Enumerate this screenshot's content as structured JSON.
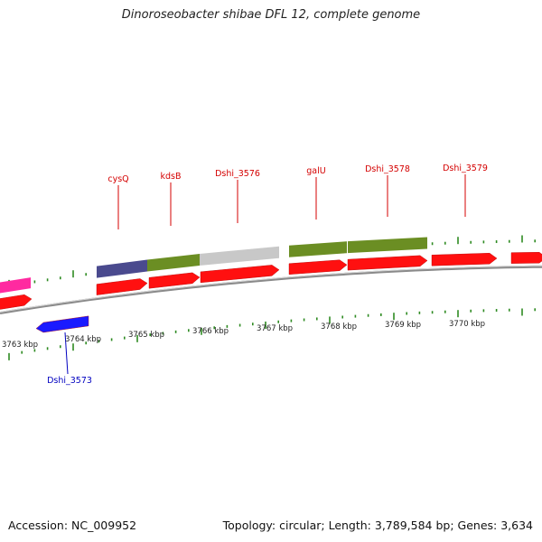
{
  "title": "Dinoroseobacter shibae DFL 12, complete genome",
  "footer": {
    "accession": "Accession: NC_009952",
    "summary": "Topology: circular; Length: 3,789,584 bp; Genes: 3,634"
  },
  "colors": {
    "forward_gene": "#ff1010",
    "reverse_gene": "#1a1aff",
    "rna_gene": "#ff2aa0",
    "backbone": "#8a8a8a",
    "tick": "#2e8b22",
    "label_forward": "#d40000",
    "label_reverse": "#0000c0",
    "cog_purple": "#4a4a8e",
    "cog_green": "#6b8e23",
    "cog_grey": "#c8c8c8"
  },
  "axis": {
    "unit": "kbp",
    "tick_labels": [
      "3763 kbp",
      "3764 kbp",
      "3765 kbp",
      "3766 kbp",
      "3767 kbp",
      "3768 kbp",
      "3769 kbp",
      "3770 kbp"
    ]
  },
  "gene_labels": {
    "forward": [
      "cysQ",
      "kdsB",
      "Dshi_3576",
      "galU",
      "Dshi_3578",
      "Dshi_3579"
    ],
    "reverse": [
      "Dshi_3573"
    ]
  }
}
